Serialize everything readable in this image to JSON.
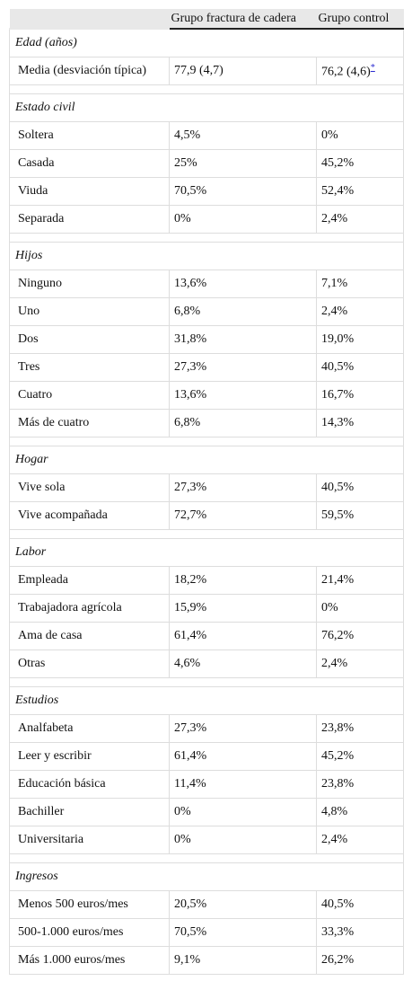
{
  "table": {
    "header": [
      "Grupo fractura de cadera",
      "Grupo control"
    ],
    "footnote_marker": "*",
    "sections": [
      {
        "title": "Edad (años)",
        "rows": [
          [
            "Media (desviación típica)",
            "77,9 (4,7)",
            "76,2 (4,6)"
          ]
        ]
      },
      {
        "title": "Estado civil",
        "rows": [
          [
            "Soltera",
            "4,5%",
            "0%"
          ],
          [
            "Casada",
            "25%",
            "45,2%"
          ],
          [
            "Viuda",
            "70,5%",
            "52,4%"
          ],
          [
            "Separada",
            "0%",
            "2,4%"
          ]
        ]
      },
      {
        "title": "Hijos",
        "rows": [
          [
            "Ninguno",
            "13,6%",
            "7,1%"
          ],
          [
            "Uno",
            "6,8%",
            "2,4%"
          ],
          [
            "Dos",
            "31,8%",
            "19,0%"
          ],
          [
            "Tres",
            "27,3%",
            "40,5%"
          ],
          [
            "Cuatro",
            "13,6%",
            "16,7%"
          ],
          [
            "Más de cuatro",
            "6,8%",
            "14,3%"
          ]
        ]
      },
      {
        "title": "Hogar",
        "rows": [
          [
            "Vive sola",
            "27,3%",
            "40,5%"
          ],
          [
            "Vive acompañada",
            "72,7%",
            "59,5%"
          ]
        ]
      },
      {
        "title": "Labor",
        "rows": [
          [
            "Empleada",
            "18,2%",
            "21,4%"
          ],
          [
            "Trabajadora agrícola",
            "15,9%",
            "0%"
          ],
          [
            "Ama de casa",
            "61,4%",
            "76,2%"
          ],
          [
            "Otras",
            "4,6%",
            "2,4%"
          ]
        ]
      },
      {
        "title": "Estudios",
        "rows": [
          [
            "Analfabeta",
            "27,3%",
            "23,8%"
          ],
          [
            "Leer y escribir",
            "61,4%",
            "45,2%"
          ],
          [
            "Educación básica",
            "11,4%",
            "23,8%"
          ],
          [
            "Bachiller",
            "0%",
            "4,8%"
          ],
          [
            "Universitaria",
            "0%",
            "2,4%"
          ]
        ]
      },
      {
        "title": "Ingresos",
        "rows": [
          [
            "Menos 500 euros/mes",
            "20,5%",
            "40,5%"
          ],
          [
            "500-1.000 euros/mes",
            "70,5%",
            "33,3%"
          ],
          [
            "Más 1.000 euros/mes",
            "9,1%",
            "26,2%"
          ]
        ]
      }
    ]
  }
}
